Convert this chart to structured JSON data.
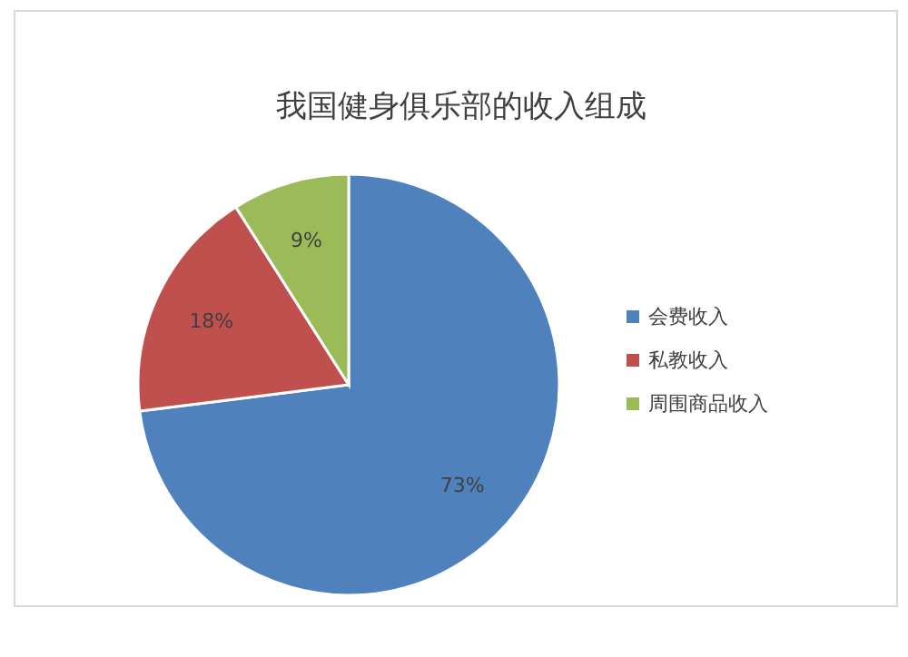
{
  "chart_data": {
    "type": "pie",
    "title": "我国健身俱乐部的收入组成",
    "categories": [
      "会费收入",
      "私教收入",
      "周围商品收入"
    ],
    "values": [
      73,
      18,
      9
    ],
    "value_labels": [
      "73%",
      "18%",
      "9%"
    ],
    "colors": [
      "#4f81bd",
      "#c0504d",
      "#9bbb59"
    ],
    "legend": "right"
  }
}
